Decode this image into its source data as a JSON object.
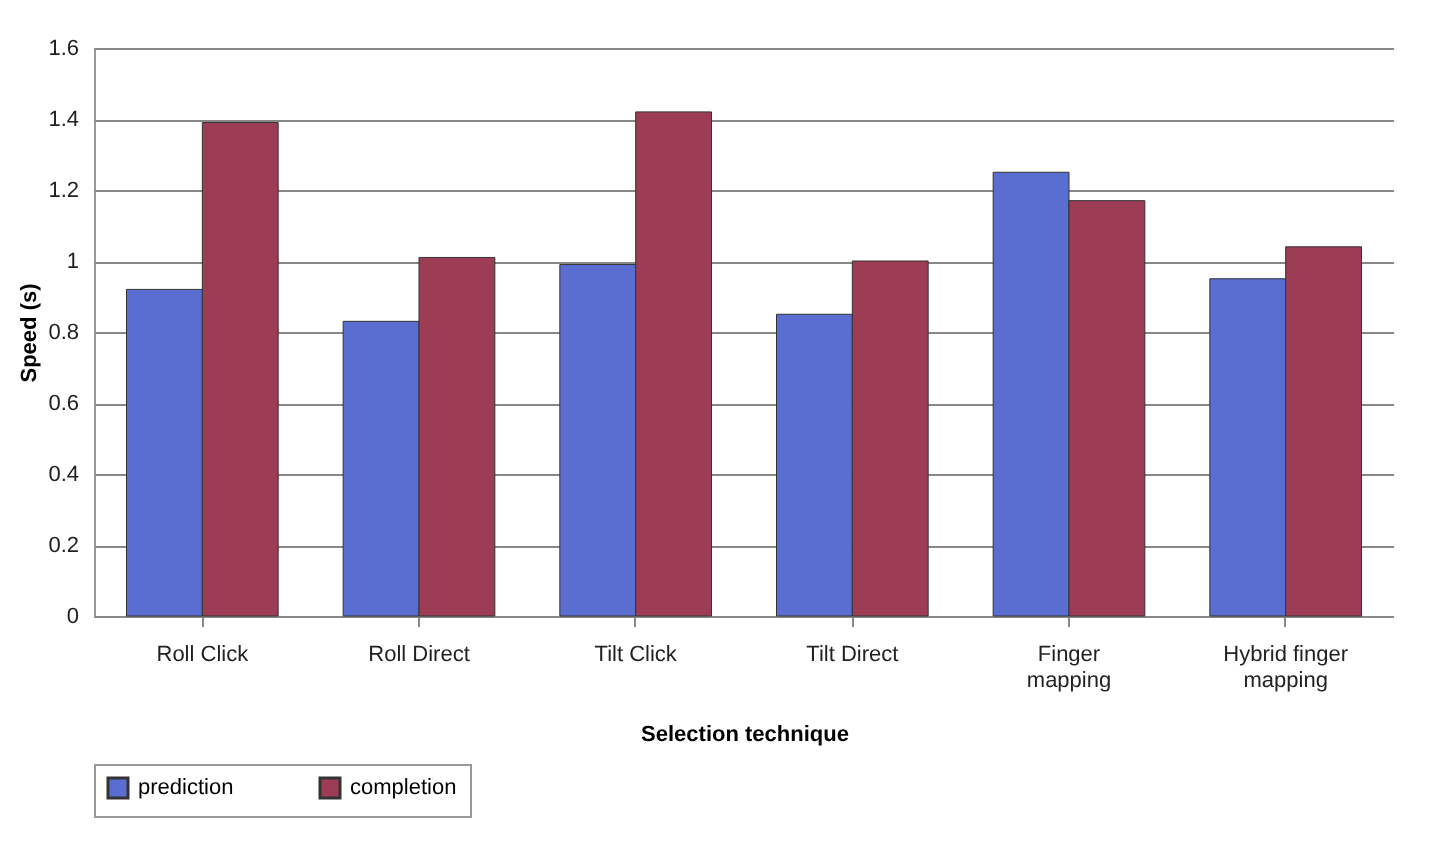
{
  "chart_data": {
    "type": "bar",
    "xlabel": "Selection technique",
    "ylabel": "Speed (s)",
    "categories": [
      "Roll Click",
      "Roll Direct",
      "Tilt Click",
      "Tilt Direct",
      "Finger mapping",
      "Hybrid finger mapping"
    ],
    "series": [
      {
        "name": "prediction",
        "color": "#5a6ed2",
        "values": [
          0.92,
          0.83,
          0.99,
          0.85,
          1.25,
          0.95
        ]
      },
      {
        "name": "completion",
        "color": "#9c3d55",
        "values": [
          1.39,
          1.01,
          1.42,
          1.0,
          1.17,
          1.04
        ]
      }
    ],
    "ylim": [
      0,
      1.6
    ],
    "yticks": [
      0,
      0.2,
      0.4,
      0.6,
      0.8,
      1,
      1.2,
      1.4,
      1.6
    ],
    "grid": "y",
    "legend": "bottom"
  }
}
